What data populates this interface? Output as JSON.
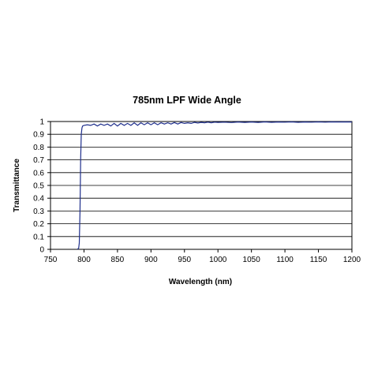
{
  "chart_data": {
    "type": "line",
    "title": "785nm LPF Wide Angle",
    "xlabel": "Wavelength  (nm)",
    "ylabel": "Transmittance",
    "xlim": [
      750,
      1200
    ],
    "ylim": [
      0,
      1
    ],
    "xticks": [
      750,
      800,
      850,
      900,
      950,
      1000,
      1050,
      1100,
      1150,
      1200
    ],
    "yticks": [
      0,
      0.1,
      0.2,
      0.3,
      0.4,
      0.5,
      0.6,
      0.7,
      0.8,
      0.9,
      1
    ],
    "grid": "horizontal",
    "legend": "none",
    "colors": {
      "series": "#1f2f8c",
      "grid": "#000000",
      "axis": "#000000"
    },
    "series": [
      {
        "x": [
          790,
          792,
          793,
          794,
          795,
          796,
          797,
          798,
          800,
          805,
          810,
          815,
          820,
          825,
          830,
          835,
          840,
          845,
          850,
          855,
          860,
          865,
          870,
          875,
          880,
          885,
          890,
          895,
          900,
          905,
          910,
          915,
          920,
          925,
          930,
          935,
          940,
          945,
          950,
          955,
          960,
          965,
          970,
          975,
          980,
          985,
          990,
          995,
          1000,
          1010,
          1020,
          1030,
          1040,
          1050,
          1060,
          1070,
          1080,
          1090,
          1100,
          1110,
          1120,
          1130,
          1140,
          1150,
          1160,
          1170,
          1180,
          1190,
          1200
        ],
        "values": [
          0,
          0.01,
          0.05,
          0.3,
          0.7,
          0.9,
          0.95,
          0.965,
          0.97,
          0.975,
          0.97,
          0.98,
          0.965,
          0.98,
          0.97,
          0.98,
          0.965,
          0.985,
          0.965,
          0.985,
          0.97,
          0.985,
          0.97,
          0.99,
          0.97,
          0.99,
          0.975,
          0.99,
          0.975,
          0.99,
          0.975,
          0.99,
          0.98,
          0.99,
          0.98,
          0.992,
          0.98,
          0.992,
          0.985,
          0.99,
          0.985,
          0.993,
          0.988,
          0.993,
          0.99,
          0.995,
          0.99,
          0.995,
          0.993,
          0.995,
          0.992,
          0.996,
          0.993,
          0.996,
          0.993,
          0.997,
          0.994,
          0.996,
          0.995,
          0.997,
          0.994,
          0.996,
          0.995,
          0.997,
          0.995,
          0.997,
          0.996,
          0.997,
          0.996
        ]
      }
    ]
  }
}
